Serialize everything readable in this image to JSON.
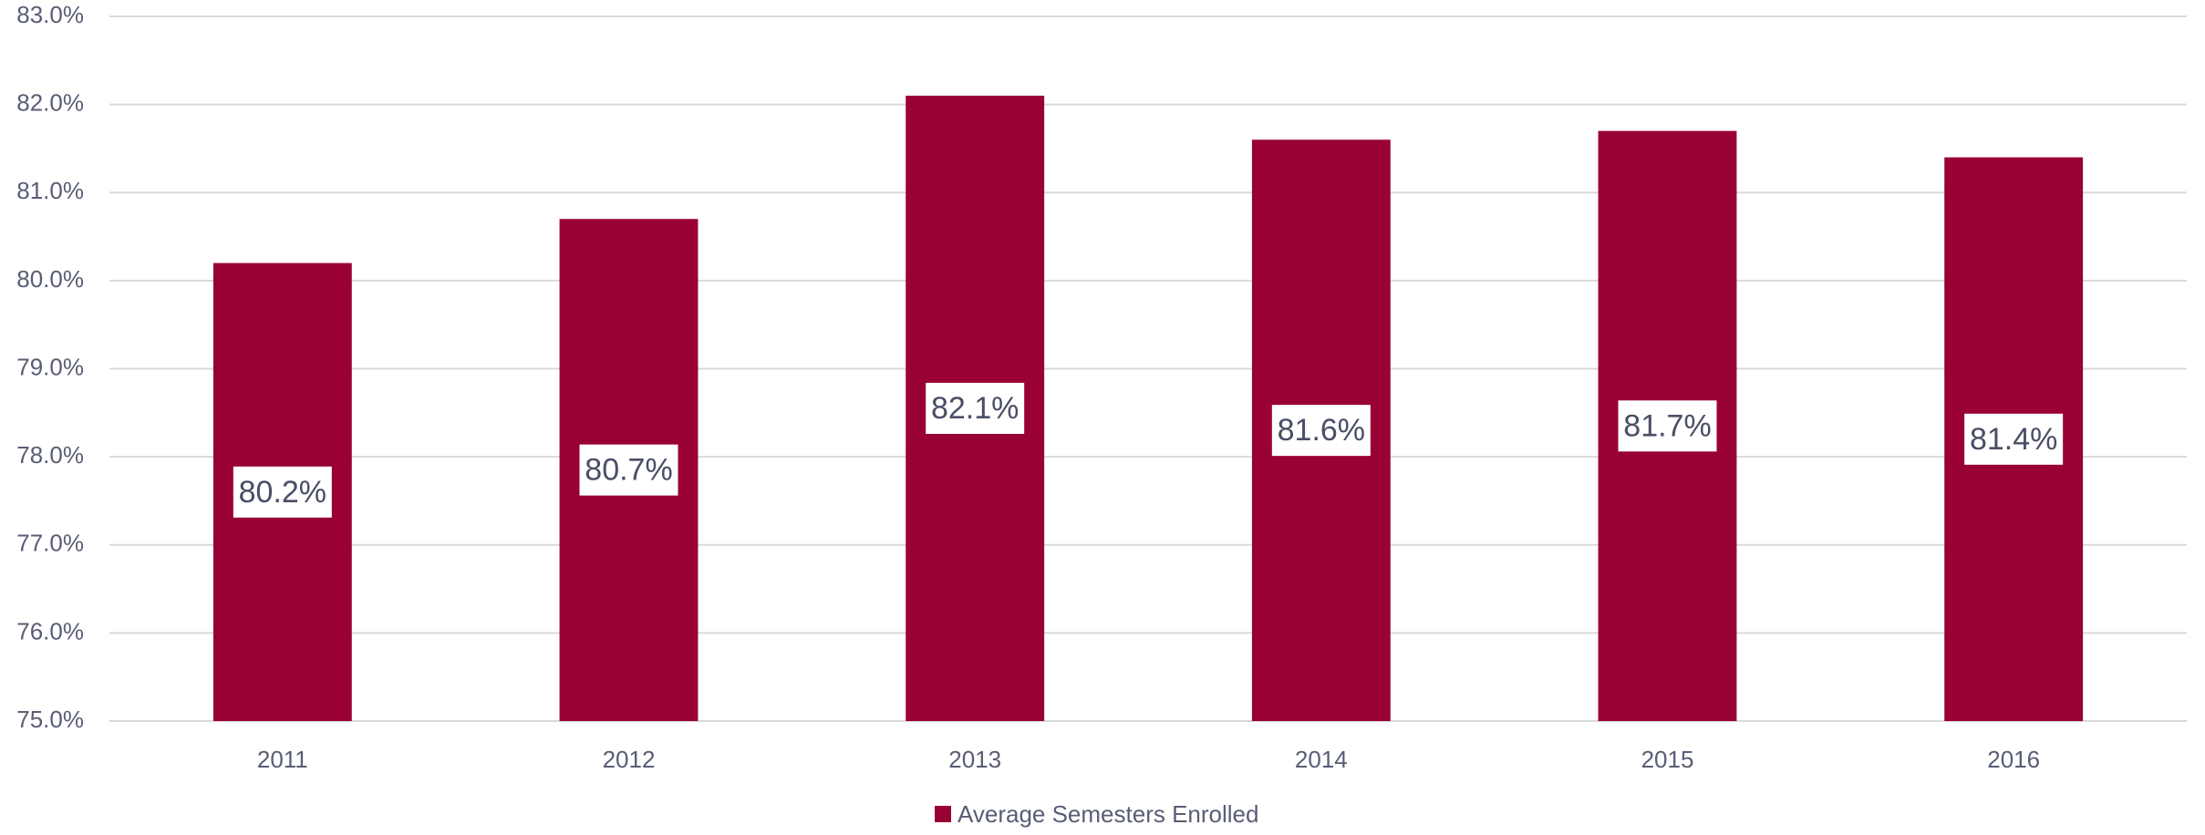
{
  "chart_data": {
    "type": "bar",
    "categories": [
      "2011",
      "2012",
      "2013",
      "2014",
      "2015",
      "2016"
    ],
    "series": [
      {
        "name": "Average Semesters Enrolled",
        "color": "#990033",
        "values": [
          80.2,
          80.7,
          82.1,
          81.6,
          81.7,
          81.4
        ],
        "value_labels": [
          "80.2%",
          "80.7%",
          "82.1%",
          "81.6%",
          "81.7%",
          "81.4%"
        ]
      }
    ],
    "ylim": [
      75,
      83
    ],
    "yticks": [
      {
        "value": 75,
        "label": "75.0%"
      },
      {
        "value": 76,
        "label": "76.0%"
      },
      {
        "value": 77,
        "label": "77.0%"
      },
      {
        "value": 78,
        "label": "78.0%"
      },
      {
        "value": 79,
        "label": "79.0%"
      },
      {
        "value": 80,
        "label": "80.0%"
      },
      {
        "value": 81,
        "label": "81.0%"
      },
      {
        "value": 82,
        "label": "82.0%"
      },
      {
        "value": 83,
        "label": "83.0%"
      }
    ],
    "grid": true,
    "legend": "bottom"
  }
}
